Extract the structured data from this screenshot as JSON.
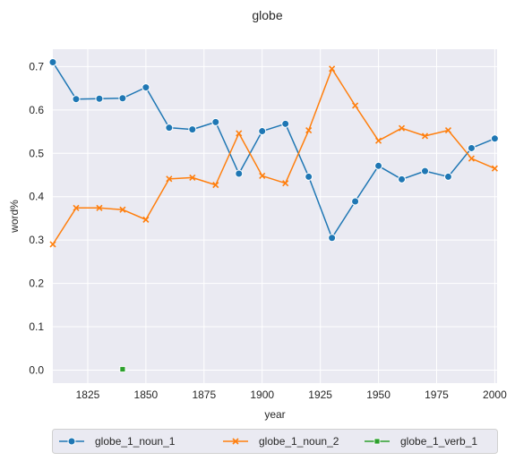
{
  "chart_data": {
    "type": "line",
    "title": "globe",
    "xlabel": "year",
    "ylabel": "word%",
    "xlim": [
      1810,
      2001
    ],
    "ylim": [
      -0.03,
      0.74
    ],
    "xticks": [
      1825,
      1850,
      1875,
      1900,
      1925,
      1950,
      1975,
      2000
    ],
    "yticks": [
      0.0,
      0.1,
      0.2,
      0.3,
      0.4,
      0.5,
      0.6,
      0.7
    ],
    "grid": true,
    "legend_position": "bottom",
    "series": [
      {
        "name": "globe_1_noun_1",
        "color": "#1f77b4",
        "marker": "circle",
        "x": [
          1810,
          1820,
          1830,
          1840,
          1850,
          1860,
          1870,
          1880,
          1890,
          1900,
          1910,
          1920,
          1930,
          1940,
          1950,
          1960,
          1970,
          1980,
          1990,
          2000
        ],
        "y": [
          0.71,
          0.625,
          0.626,
          0.627,
          0.652,
          0.559,
          0.555,
          0.572,
          0.453,
          0.551,
          0.568,
          0.446,
          0.305,
          0.389,
          0.471,
          0.44,
          0.459,
          0.446,
          0.512,
          0.534
        ]
      },
      {
        "name": "globe_1_noun_2",
        "color": "#ff7f0e",
        "marker": "x",
        "x": [
          1810,
          1820,
          1830,
          1840,
          1850,
          1860,
          1870,
          1880,
          1890,
          1900,
          1910,
          1920,
          1930,
          1940,
          1950,
          1960,
          1970,
          1980,
          1990,
          2000
        ],
        "y": [
          0.29,
          0.374,
          0.374,
          0.37,
          0.347,
          0.441,
          0.444,
          0.427,
          0.546,
          0.448,
          0.431,
          0.553,
          0.695,
          0.61,
          0.529,
          0.558,
          0.54,
          0.553,
          0.488,
          0.465
        ]
      },
      {
        "name": "globe_1_verb_1",
        "color": "#2ca02c",
        "marker": "square",
        "x": [
          1840
        ],
        "y": [
          0.002
        ]
      }
    ]
  }
}
